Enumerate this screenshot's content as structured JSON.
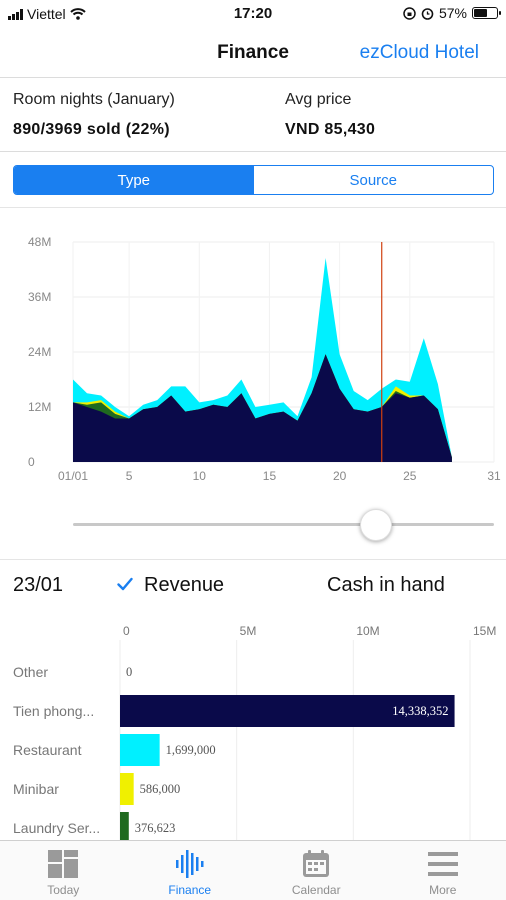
{
  "status_bar": {
    "carrier": "Viettel",
    "time": "17:20",
    "battery": "57%",
    "battery_level": 0.57
  },
  "nav": {
    "title": "Finance",
    "right_label": "ezCloud Hotel"
  },
  "summary": {
    "room_nights_label": "Room nights (January)",
    "room_nights_value": "890/3969 sold (22%)",
    "avg_price_label": "Avg price",
    "avg_price_value": "VND 85,430"
  },
  "segments": [
    {
      "label": "Type",
      "active": true
    },
    {
      "label": "Source",
      "active": false
    }
  ],
  "chart_data": {
    "type": "area",
    "x": [
      1,
      2,
      3,
      4,
      5,
      6,
      7,
      8,
      9,
      10,
      11,
      12,
      13,
      14,
      15,
      16,
      17,
      18,
      19,
      20,
      21,
      22,
      23,
      24,
      25,
      26,
      27,
      28
    ],
    "x_tick_labels": [
      "01/01",
      "5",
      "10",
      "15",
      "20",
      "25",
      "31"
    ],
    "x_tick_values": [
      1,
      5,
      10,
      15,
      20,
      25,
      31
    ],
    "xlim": [
      1,
      31
    ],
    "y_tick_labels": [
      "0",
      "12M",
      "24M",
      "36M",
      "48M"
    ],
    "y_tick_values": [
      0,
      12,
      24,
      36,
      48
    ],
    "ylim": [
      0,
      48
    ],
    "grid": true,
    "colors": {
      "Tien phong": "#0a0a4a",
      "Restaurant": "#00f0ff",
      "Minibar": "#f0f000",
      "Laundry Service": "#1f6a1f",
      "marker": "#d04010"
    },
    "series": [
      {
        "name": "Tien phong",
        "values": [
          13,
          12,
          11,
          9.5,
          9.5,
          11.5,
          12,
          14.5,
          11,
          11.5,
          12.5,
          12,
          15,
          9.5,
          10.5,
          11,
          9,
          15,
          23.5,
          16,
          11.5,
          11,
          12,
          15,
          14,
          14.5,
          11.5,
          1
        ]
      },
      {
        "name": "Laundry Service",
        "values": [
          0,
          0.5,
          2,
          1,
          0,
          0,
          0,
          0,
          0,
          0,
          0,
          0,
          0,
          0,
          0,
          0,
          0,
          0,
          0,
          0,
          0,
          0,
          0,
          0.5,
          0,
          0,
          0,
          0
        ]
      },
      {
        "name": "Minibar",
        "values": [
          0,
          0.5,
          0.5,
          0.5,
          0,
          0,
          0,
          0,
          0,
          0,
          0,
          0,
          0,
          0,
          0,
          0,
          0,
          0,
          0,
          0,
          0,
          0,
          0,
          1,
          0.5,
          0,
          0,
          0
        ]
      },
      {
        "name": "Restaurant",
        "values": [
          5,
          2,
          1,
          1,
          0.5,
          1,
          1.5,
          2,
          5.5,
          1.5,
          1,
          2.5,
          3,
          2.5,
          2,
          2,
          1,
          3.5,
          21,
          7.5,
          4,
          2.5,
          4,
          1.5,
          3,
          12.5,
          5.5,
          0
        ]
      }
    ],
    "marker_x": 23
  },
  "slider": {
    "value": 0.72
  },
  "detail": {
    "date": "23/01",
    "revenue_label": "Revenue",
    "cash_label": "Cash in hand"
  },
  "breakdown": {
    "type": "bar",
    "orientation": "horizontal",
    "x_tick_labels": [
      "0",
      "5M",
      "10M",
      "15M"
    ],
    "x_tick_values": [
      0,
      5000000,
      10000000,
      15000000
    ],
    "xlim": [
      0,
      15000000
    ],
    "categories": [
      "Other",
      "Tien phong...",
      "Restaurant",
      "Minibar",
      "Laundry Ser..."
    ],
    "values": [
      0,
      14338352,
      1699000,
      586000,
      376623
    ],
    "value_labels": [
      "0",
      "14,338,352",
      "1,699,000",
      "586,000",
      "376,623"
    ],
    "colors": [
      "#999999",
      "#0a0a4a",
      "#00f0ff",
      "#f0f000",
      "#1f6a1f"
    ]
  },
  "tabs": [
    {
      "label": "Today",
      "icon": "dashboard-icon",
      "active": false
    },
    {
      "label": "Finance",
      "icon": "waveform-icon",
      "active": true
    },
    {
      "label": "Calendar",
      "icon": "calendar-icon",
      "active": false
    },
    {
      "label": "More",
      "icon": "menu-icon",
      "active": false
    }
  ]
}
